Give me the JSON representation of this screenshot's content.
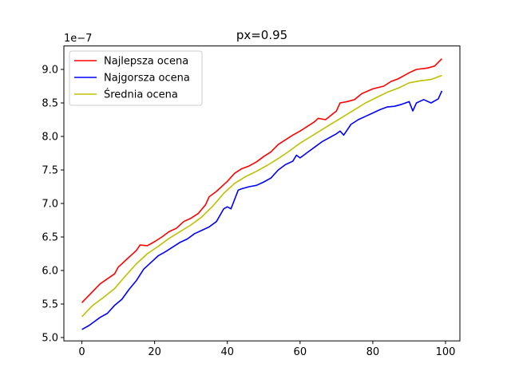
{
  "chart_data": {
    "type": "line",
    "title": "px=0.95",
    "xlabel": "",
    "ylabel": "",
    "y_scale_label": "1e−7",
    "xlim": [
      -4.95,
      103.95
    ],
    "ylim": [
      4.95,
      9.35
    ],
    "x_ticks": [
      0,
      20,
      40,
      60,
      80,
      100
    ],
    "x_tick_labels": [
      "0",
      "20",
      "40",
      "60",
      "80",
      "100"
    ],
    "y_ticks": [
      5.0,
      5.5,
      6.0,
      6.5,
      7.0,
      7.5,
      8.0,
      8.5,
      9.0
    ],
    "y_tick_labels": [
      "5.0",
      "5.5",
      "6.0",
      "6.5",
      "7.0",
      "7.5",
      "8.0",
      "8.5",
      "9.0"
    ],
    "grid": false,
    "legend_position": "upper-left",
    "series": [
      {
        "name": "Najlepsza ocena",
        "color": "#ff0000",
        "x": [
          0,
          5,
          9,
          10,
          12,
          15,
          16,
          18,
          20,
          22,
          24,
          26,
          28,
          30,
          32,
          34,
          35,
          37,
          40,
          42,
          44,
          46,
          48,
          50,
          52,
          54,
          56,
          58,
          60,
          62,
          64,
          65,
          67,
          70,
          71,
          73,
          75,
          77,
          80,
          83,
          85,
          87,
          90,
          92,
          95,
          97,
          99
        ],
        "y": [
          5.52,
          5.8,
          5.95,
          6.05,
          6.15,
          6.3,
          6.38,
          6.37,
          6.43,
          6.5,
          6.58,
          6.63,
          6.73,
          6.78,
          6.85,
          6.98,
          7.1,
          7.18,
          7.33,
          7.45,
          7.52,
          7.56,
          7.62,
          7.7,
          7.77,
          7.88,
          7.95,
          8.02,
          8.08,
          8.15,
          8.22,
          8.27,
          8.25,
          8.38,
          8.5,
          8.52,
          8.55,
          8.64,
          8.71,
          8.75,
          8.82,
          8.86,
          8.95,
          9.0,
          9.02,
          9.05,
          9.16
        ]
      },
      {
        "name": "Najgorsza ocena",
        "color": "#0000ff",
        "x": [
          0,
          2,
          3,
          5,
          7,
          9,
          11,
          13,
          15,
          17,
          19,
          21,
          23,
          25,
          27,
          29,
          31,
          33,
          35,
          37,
          39,
          40,
          41,
          43,
          44,
          46,
          48,
          50,
          52,
          54,
          56,
          58,
          59,
          60,
          62,
          64,
          66,
          68,
          70,
          71,
          72,
          74,
          76,
          78,
          80,
          82,
          84,
          86,
          88,
          90,
          91,
          92,
          94,
          96,
          98,
          99
        ],
        "y": [
          5.12,
          5.18,
          5.22,
          5.3,
          5.36,
          5.48,
          5.57,
          5.72,
          5.85,
          6.02,
          6.12,
          6.22,
          6.28,
          6.35,
          6.42,
          6.47,
          6.55,
          6.6,
          6.65,
          6.73,
          6.92,
          6.95,
          6.92,
          7.2,
          7.22,
          7.25,
          7.27,
          7.32,
          7.38,
          7.5,
          7.58,
          7.63,
          7.72,
          7.68,
          7.76,
          7.84,
          7.92,
          7.98,
          8.04,
          8.08,
          8.02,
          8.18,
          8.25,
          8.3,
          8.35,
          8.4,
          8.44,
          8.45,
          8.48,
          8.52,
          8.38,
          8.5,
          8.55,
          8.5,
          8.56,
          8.68
        ]
      },
      {
        "name": "Średnia ocena",
        "color": "#bfbf00",
        "x": [
          0,
          3,
          6,
          9,
          12,
          15,
          18,
          21,
          24,
          27,
          30,
          33,
          36,
          39,
          42,
          45,
          48,
          51,
          54,
          57,
          60,
          63,
          66,
          69,
          72,
          75,
          78,
          81,
          84,
          87,
          90,
          93,
          96,
          99
        ],
        "y": [
          5.31,
          5.48,
          5.6,
          5.73,
          5.92,
          6.1,
          6.25,
          6.36,
          6.48,
          6.58,
          6.68,
          6.8,
          6.96,
          7.15,
          7.3,
          7.4,
          7.48,
          7.57,
          7.67,
          7.78,
          7.9,
          8.0,
          8.1,
          8.2,
          8.3,
          8.4,
          8.5,
          8.58,
          8.66,
          8.72,
          8.8,
          8.83,
          8.85,
          8.91
        ]
      }
    ]
  }
}
